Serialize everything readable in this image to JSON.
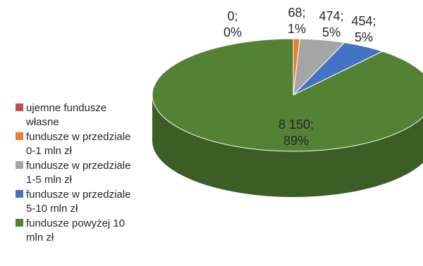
{
  "chart_data": {
    "type": "pie",
    "title": "",
    "style": "3d",
    "legend_position": "left",
    "series": [
      {
        "categories": [
          "ujemne fundusze własne",
          "fundusze w przedziale 0-1 mln zł",
          "fundusze w przedziale 1-5 mln zł",
          "fundusze w przedziale 5-10 mln zł",
          "fundusze powyżej 10 mln zł"
        ],
        "values": [
          0,
          68,
          474,
          454,
          8150
        ],
        "percent_labels": [
          "0%",
          "1%",
          "5%",
          "5%",
          "89%"
        ],
        "value_labels": [
          "0;",
          "68;",
          "474;",
          "454;",
          "8 150;"
        ],
        "colors": [
          "#c0504d",
          "#ed7d31",
          "#a5a5a5",
          "#4472c4",
          "#548235"
        ]
      }
    ],
    "legend": [
      {
        "lines": [
          "ujemne fundusze",
          "własne"
        ],
        "color": "#c0504d"
      },
      {
        "lines": [
          "fundusze w przedziale",
          "0-1 mln zł"
        ],
        "color": "#ed7d31"
      },
      {
        "lines": [
          "fundusze w przedziale",
          "1-5 mln zł"
        ],
        "color": "#a5a5a5"
      },
      {
        "lines": [
          "fundusze w przedziale",
          "5-10 mln zł"
        ],
        "color": "#4472c4"
      },
      {
        "lines": [
          "fundusze powyżej 10",
          "mln zł"
        ],
        "color": "#548235"
      }
    ]
  }
}
